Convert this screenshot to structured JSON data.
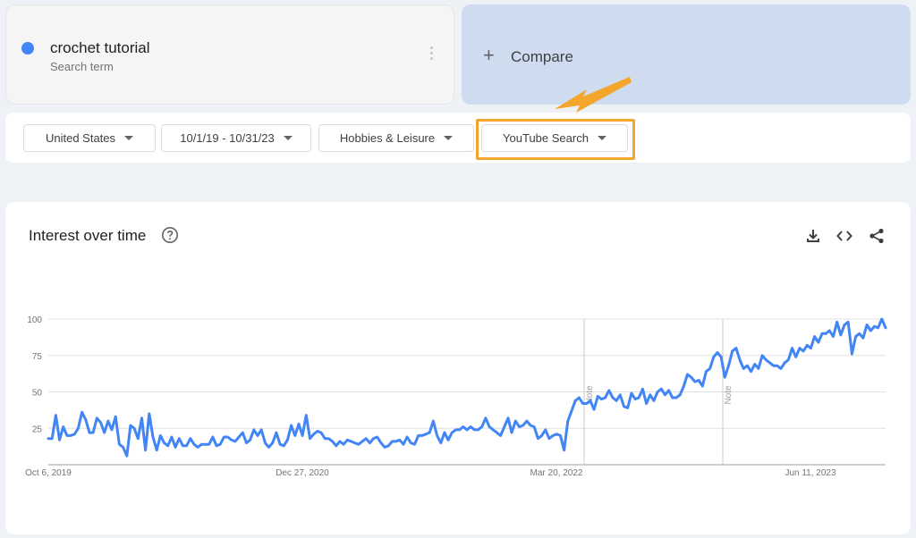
{
  "search_term": {
    "title": "crochet tutorial",
    "subtitle": "Search term",
    "color": "#4285f4"
  },
  "compare": {
    "plus": "+",
    "label": "Compare"
  },
  "filters": {
    "region": "United States",
    "date_range": "10/1/19 - 10/31/23",
    "category": "Hobbies & Leisure",
    "source": "YouTube Search"
  },
  "highlight_color": "#f3a62b",
  "panel": {
    "title": "Interest over time",
    "icons": [
      "help-icon",
      "download-icon",
      "embed-icon",
      "share-icon"
    ]
  },
  "chart_data": {
    "type": "line",
    "ylim": [
      0,
      100
    ],
    "yticks": [
      100,
      75,
      50,
      25
    ],
    "x_labels": [
      "Oct 6, 2019",
      "Dec 27, 2020",
      "Mar 20, 2022",
      "Jun 11, 2023"
    ],
    "notes": [
      "Note",
      "Note"
    ],
    "series": [
      {
        "color": "#4285f4",
        "values": [
          18,
          18,
          34,
          17,
          26,
          20,
          20,
          21,
          25,
          36,
          31,
          22,
          22,
          32,
          29,
          22,
          30,
          24,
          33,
          14,
          12,
          6,
          27,
          25,
          18,
          32,
          10,
          35,
          19,
          10,
          20,
          15,
          13,
          19,
          12,
          18,
          13,
          13,
          18,
          14,
          12,
          14,
          14,
          14,
          19,
          13,
          14,
          19,
          19,
          17,
          16,
          19,
          22,
          15,
          17,
          24,
          20,
          24,
          15,
          12,
          15,
          22,
          14,
          13,
          17,
          27,
          20,
          28,
          20,
          34,
          18,
          21,
          23,
          22,
          18,
          18,
          16,
          13,
          16,
          14,
          17,
          16,
          15,
          14,
          16,
          18,
          15,
          18,
          19,
          15,
          12,
          13,
          16,
          16,
          17,
          14,
          19,
          15,
          14,
          20,
          20,
          21,
          22,
          30,
          20,
          15,
          22,
          17,
          22,
          24,
          24,
          26,
          24,
          26,
          24,
          24,
          26,
          32,
          26,
          24,
          22,
          20,
          26,
          32,
          22,
          30,
          26,
          27,
          30,
          27,
          26,
          18,
          20,
          24,
          18,
          20,
          21,
          20,
          10,
          30,
          37,
          44,
          46,
          42,
          42,
          44,
          38,
          47,
          45,
          46,
          51,
          46,
          44,
          48,
          40,
          39,
          49,
          45,
          46,
          52,
          42,
          48,
          44,
          50,
          52,
          48,
          51,
          46,
          46,
          48,
          54,
          62,
          60,
          57,
          58,
          54,
          64,
          66,
          74,
          77,
          74,
          60,
          68,
          78,
          80,
          72,
          66,
          68,
          64,
          69,
          66,
          75,
          72,
          70,
          68,
          68,
          66,
          70,
          72,
          80,
          74,
          80,
          78,
          82,
          80,
          88,
          84,
          90,
          90,
          92,
          88,
          98,
          89,
          96,
          98,
          76,
          88,
          90,
          87,
          96,
          92,
          95,
          94,
          100,
          94
        ]
      }
    ]
  }
}
